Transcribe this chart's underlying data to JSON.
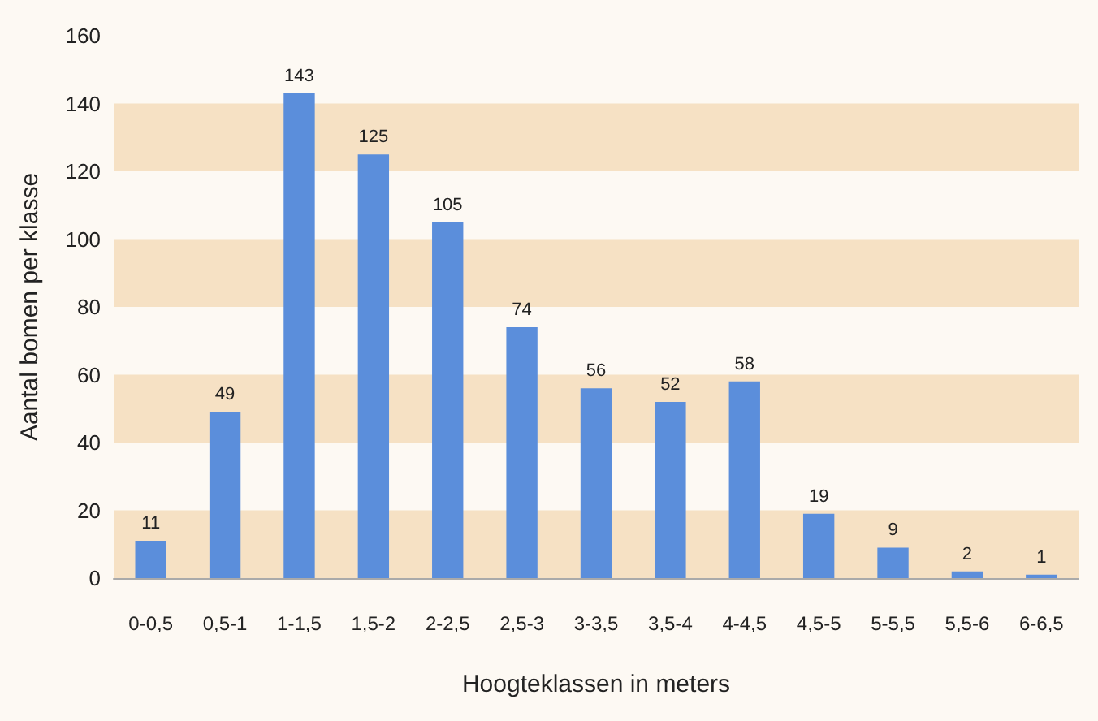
{
  "chart_data": {
    "type": "bar",
    "xlabel": "Hoogteklassen in meters",
    "ylabel": "Aantal bomen per klasse",
    "categories": [
      "0-0,5",
      "0,5-1",
      "1-1,5",
      "1,5-2",
      "2-2,5",
      "2,5-3",
      "3-3,5",
      "3,5-4",
      "4-4,5",
      "4,5-5",
      "5-5,5",
      "5,5-6",
      "6-6,5"
    ],
    "values": [
      11,
      49,
      143,
      125,
      105,
      74,
      56,
      52,
      58,
      19,
      9,
      2,
      1
    ],
    "color": "#5b8edb",
    "ylim": [
      0,
      160
    ],
    "yticks": [
      0,
      20,
      40,
      60,
      80,
      100,
      120,
      140,
      160
    ],
    "data_labels": true,
    "bands": [
      {
        "axis": "y",
        "from": 0,
        "to": 20,
        "color": "#f6e1c4"
      },
      {
        "axis": "y",
        "from": 40,
        "to": 60,
        "color": "#f6e1c4"
      },
      {
        "axis": "y",
        "from": 80,
        "to": 100,
        "color": "#f6e1c4"
      },
      {
        "axis": "y",
        "from": 120,
        "to": 140,
        "color": "#f6e1c4"
      }
    ]
  }
}
